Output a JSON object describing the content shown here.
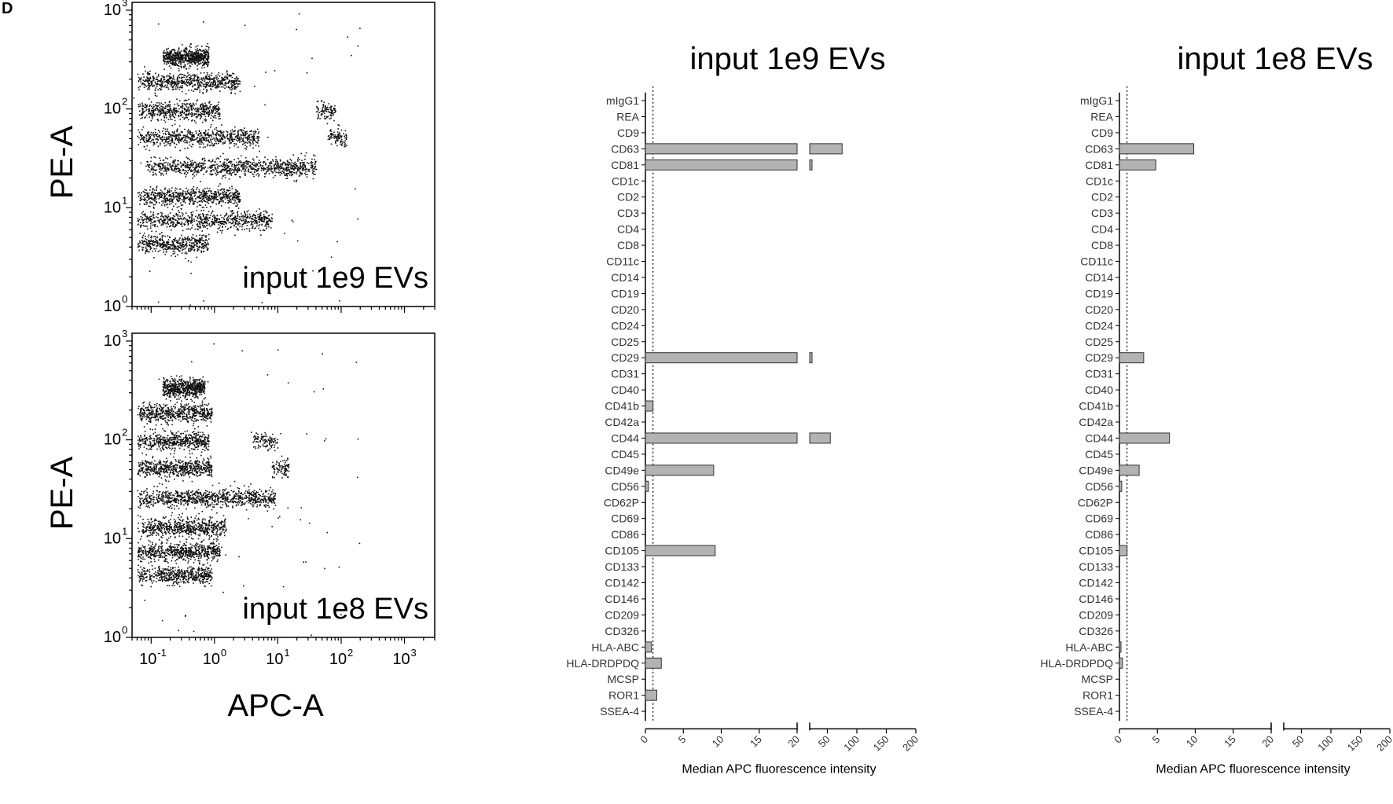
{
  "panel_label": "D",
  "chart_data": [
    {
      "type": "scatter",
      "title": "",
      "annotation": "input 1e9 EVs",
      "xlabel": "",
      "ylabel": "PE-A",
      "x_scale": "log",
      "y_scale": "log",
      "xlim": [
        0.05,
        3000
      ],
      "ylim": [
        1,
        1200
      ],
      "x_ticks": [
        {
          "base": "10",
          "exp": "-1"
        },
        {
          "base": "10",
          "exp": "0"
        },
        {
          "base": "10",
          "exp": "1"
        },
        {
          "base": "10",
          "exp": "2"
        },
        {
          "base": "10",
          "exp": "3"
        }
      ],
      "y_ticks": [
        {
          "base": "10",
          "exp": "0"
        },
        {
          "base": "10",
          "exp": "1"
        },
        {
          "base": "10",
          "exp": "2"
        },
        {
          "base": "10",
          "exp": "3"
        }
      ],
      "populations": [
        {
          "y": 340,
          "x_min": 0.15,
          "x_max": 0.8,
          "n": 650
        },
        {
          "y": 190,
          "x_min": 0.06,
          "x_max": 2.5,
          "n": 600
        },
        {
          "y": 98,
          "x_min": 0.06,
          "x_max": 1.2,
          "n": 500
        },
        {
          "y": 95,
          "x_min": 40,
          "x_max": 80,
          "n": 100
        },
        {
          "y": 52,
          "x_min": 0.06,
          "x_max": 5,
          "n": 650
        },
        {
          "y": 52,
          "x_min": 60,
          "x_max": 120,
          "n": 90
        },
        {
          "y": 26,
          "x_min": 0.08,
          "x_max": 40,
          "n": 900
        },
        {
          "y": 13,
          "x_min": 0.06,
          "x_max": 2.5,
          "n": 650
        },
        {
          "y": 7.5,
          "x_min": 0.06,
          "x_max": 8,
          "n": 700
        },
        {
          "y": 4.3,
          "x_min": 0.06,
          "x_max": 0.8,
          "n": 450
        }
      ]
    },
    {
      "type": "scatter",
      "title": "",
      "annotation": "input 1e8 EVs",
      "xlabel": "APC-A",
      "ylabel": "PE-A",
      "x_scale": "log",
      "y_scale": "log",
      "xlim": [
        0.05,
        3000
      ],
      "ylim": [
        1,
        1200
      ],
      "x_ticks": [
        {
          "base": "10",
          "exp": "-1"
        },
        {
          "base": "10",
          "exp": "0"
        },
        {
          "base": "10",
          "exp": "1"
        },
        {
          "base": "10",
          "exp": "2"
        },
        {
          "base": "10",
          "exp": "3"
        }
      ],
      "y_ticks": [
        {
          "base": "10",
          "exp": "0"
        },
        {
          "base": "10",
          "exp": "1"
        },
        {
          "base": "10",
          "exp": "2"
        },
        {
          "base": "10",
          "exp": "3"
        }
      ],
      "populations": [
        {
          "y": 340,
          "x_min": 0.15,
          "x_max": 0.7,
          "n": 600
        },
        {
          "y": 190,
          "x_min": 0.06,
          "x_max": 0.9,
          "n": 550
        },
        {
          "y": 98,
          "x_min": 0.06,
          "x_max": 0.8,
          "n": 500
        },
        {
          "y": 98,
          "x_min": 4,
          "x_max": 10,
          "n": 100
        },
        {
          "y": 52,
          "x_min": 0.06,
          "x_max": 0.9,
          "n": 550
        },
        {
          "y": 52,
          "x_min": 8,
          "x_max": 15,
          "n": 90
        },
        {
          "y": 26,
          "x_min": 0.06,
          "x_max": 9,
          "n": 850
        },
        {
          "y": 13,
          "x_min": 0.06,
          "x_max": 1.5,
          "n": 600
        },
        {
          "y": 7.5,
          "x_min": 0.06,
          "x_max": 1.2,
          "n": 600
        },
        {
          "y": 4.3,
          "x_min": 0.06,
          "x_max": 0.9,
          "n": 500
        }
      ]
    },
    {
      "type": "bar",
      "orientation": "horizontal",
      "title": "input 1e9 EVs",
      "xlabel": "Median APC fluorescence intensity",
      "ylabel": "",
      "x_axis_break": {
        "segment1": [
          0,
          20
        ],
        "segment2": [
          20,
          200
        ]
      },
      "x_ticks_segment1": [
        "0",
        "5",
        "10",
        "15",
        "20"
      ],
      "x_ticks_segment2": [
        "50",
        "100",
        "150",
        "200"
      ],
      "reference_line": 1,
      "categories": [
        "mIgG1",
        "REA",
        "CD9",
        "CD63",
        "CD81",
        "CD1c",
        "CD2",
        "CD3",
        "CD4",
        "CD8",
        "CD11c",
        "CD14",
        "CD19",
        "CD20",
        "CD24",
        "CD25",
        "CD29",
        "CD31",
        "CD40",
        "CD41b",
        "CD42a",
        "CD44",
        "CD45",
        "CD49e",
        "CD56",
        "CD62P",
        "CD69",
        "CD86",
        "CD105",
        "CD133",
        "CD142",
        "CD146",
        "CD209",
        "CD326",
        "HLA-ABC",
        "HLA-DRDPDQ",
        "MCSP",
        "ROR1",
        "SSEA-4"
      ],
      "values": [
        0,
        0,
        0,
        75,
        22,
        0,
        0,
        0,
        0,
        0,
        0,
        0,
        0,
        0,
        0,
        0,
        22,
        0,
        0,
        1,
        0,
        55,
        0,
        9,
        0.4,
        0,
        0,
        0,
        9.2,
        0,
        0,
        0,
        0,
        0,
        0.8,
        2.1,
        0,
        1.5,
        0
      ]
    },
    {
      "type": "bar",
      "orientation": "horizontal",
      "title": "input 1e8 EVs",
      "xlabel": "Median APC fluorescence intensity",
      "ylabel": "",
      "x_axis_break": {
        "segment1": [
          0,
          20
        ],
        "segment2": [
          20,
          200
        ]
      },
      "x_ticks_segment1": [
        "0",
        "5",
        "10",
        "15",
        "20"
      ],
      "x_ticks_segment2": [
        "50",
        "100",
        "150",
        "200"
      ],
      "reference_line": 1,
      "categories": [
        "mIgG1",
        "REA",
        "CD9",
        "CD63",
        "CD81",
        "CD1c",
        "CD2",
        "CD3",
        "CD4",
        "CD8",
        "CD11c",
        "CD14",
        "CD19",
        "CD20",
        "CD24",
        "CD25",
        "CD29",
        "CD31",
        "CD40",
        "CD41b",
        "CD42a",
        "CD44",
        "CD45",
        "CD49e",
        "CD56",
        "CD62P",
        "CD69",
        "CD86",
        "CD105",
        "CD133",
        "CD142",
        "CD146",
        "CD209",
        "CD326",
        "HLA-ABC",
        "HLA-DRDPDQ",
        "MCSP",
        "ROR1",
        "SSEA-4"
      ],
      "values": [
        0,
        0,
        0,
        9.8,
        4.8,
        0,
        0,
        0,
        0,
        0,
        0,
        0,
        0,
        0,
        0,
        0,
        3.2,
        0,
        0,
        0,
        0,
        6.6,
        0,
        2.6,
        0.3,
        0,
        0,
        0,
        1,
        0,
        0,
        0,
        0,
        0,
        0.2,
        0.4,
        0,
        0,
        0
      ]
    }
  ],
  "colors": {
    "bar_fill": "#b3b3b3",
    "bar_stroke": "#333333",
    "dots": "#111111",
    "axis": "#000000"
  }
}
